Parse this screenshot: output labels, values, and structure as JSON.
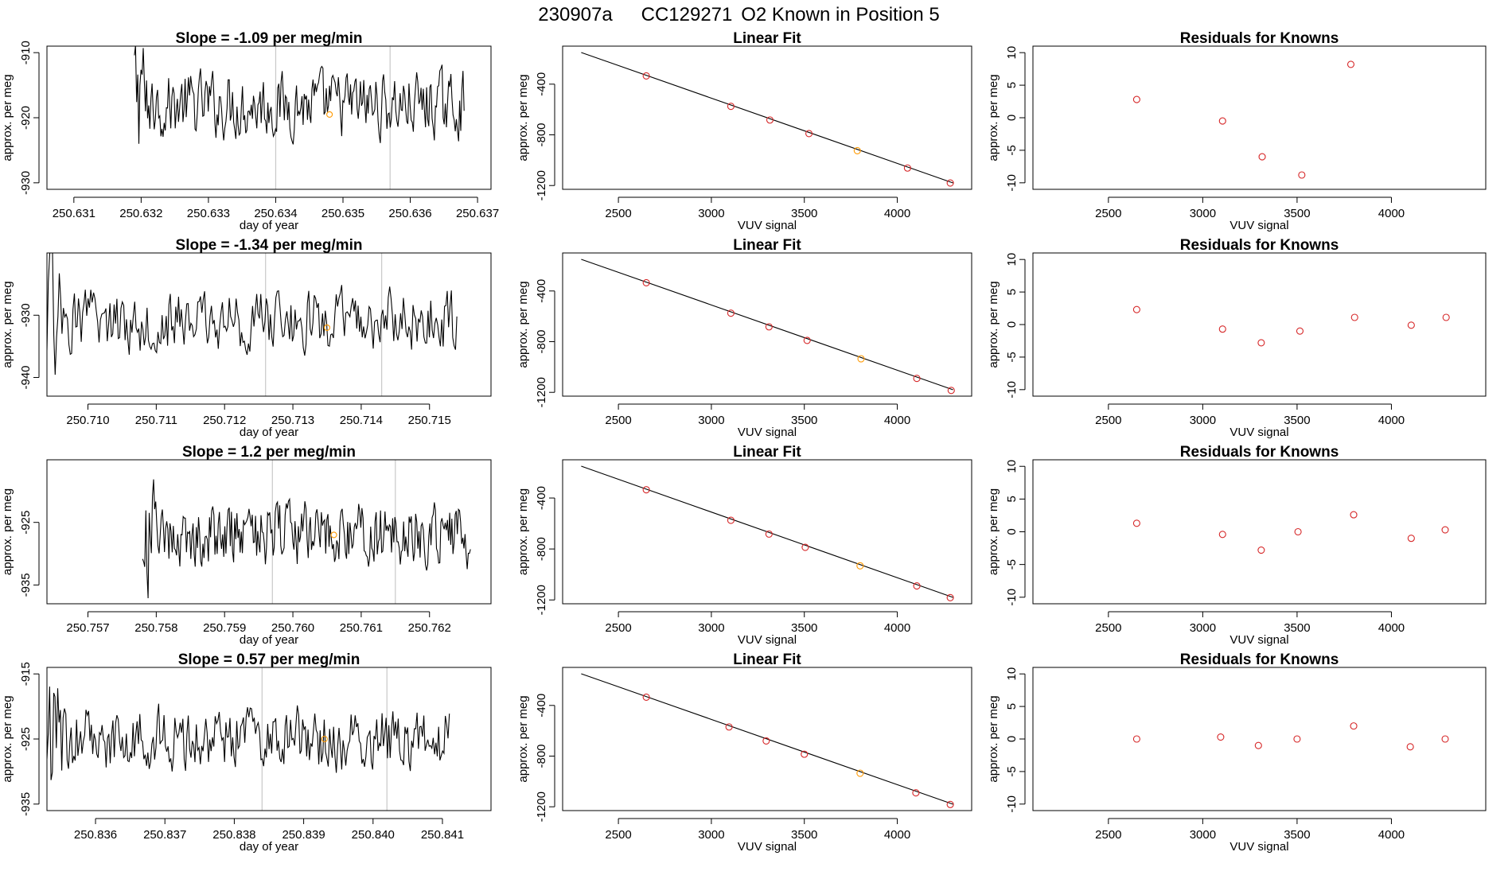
{
  "figure_title": {
    "run_id": "230907a",
    "tank_id": "CC129271",
    "description": "O2 Known in Position  5"
  },
  "colors": {
    "trace": "#000000",
    "marker_known": "#d62728",
    "marker_highlight": "#ff9900",
    "vline": "#c8c8c8",
    "fit_line": "#000000",
    "frame": "#000000"
  },
  "chart_data": [
    {
      "type": "line",
      "row": 0,
      "panel": "time_series",
      "title": "Slope =  -1.09  per meg/min",
      "xlabel": "day of year",
      "ylabel": "approx. per meg",
      "xlim": [
        250.6306,
        250.6372
      ],
      "ylim": [
        -931.0,
        -909.0
      ],
      "xticks": [
        250.631,
        250.632,
        250.633,
        250.634,
        250.635,
        250.636,
        250.637
      ],
      "xtick_labels": [
        "250.631",
        "250.632",
        "250.633",
        "250.634",
        "250.635",
        "250.636",
        "250.637"
      ],
      "yticks": [
        -930,
        -920,
        -910
      ],
      "ytick_labels": [
        "-930",
        "-920",
        "-910"
      ],
      "series_start": 250.6319,
      "series_end": 250.6368,
      "series_center": -918.0,
      "series_spread": 4.5,
      "vlines": [
        250.634,
        250.6357
      ],
      "highlight_point": {
        "x": 250.6348,
        "y": -919.5
      }
    },
    {
      "type": "scatter",
      "row": 0,
      "panel": "linear_fit",
      "title": "Linear Fit",
      "xlabel": "VUV signal",
      "ylabel": "approx. per meg",
      "xlim": [
        2200,
        4400
      ],
      "ylim": [
        -1230,
        -100
      ],
      "xticks": [
        2500,
        3000,
        3500,
        4000
      ],
      "xtick_labels": [
        "2500",
        "3000",
        "3500",
        "4000"
      ],
      "yticks": [
        -1200,
        -800,
        -400
      ],
      "ytick_labels": [
        "-1200",
        "-800",
        "-400"
      ],
      "fit_line": {
        "x": [
          2300,
          4300
        ],
        "y": [
          -150,
          -1180
        ]
      },
      "points": [
        {
          "x": 2650,
          "y": -335
        },
        {
          "x": 3105,
          "y": -575
        },
        {
          "x": 3315,
          "y": -683
        },
        {
          "x": 3525,
          "y": -790
        },
        {
          "x": 3785,
          "y": -925,
          "highlight": true
        },
        {
          "x": 4055,
          "y": -1062
        },
        {
          "x": 4285,
          "y": -1180
        }
      ]
    },
    {
      "type": "scatter",
      "row": 0,
      "panel": "residuals",
      "title": "Residuals for Knowns",
      "xlabel": "VUV signal",
      "ylabel": "approx. per meg",
      "xlim": [
        2100,
        4500
      ],
      "ylim": [
        -11,
        11
      ],
      "xticks": [
        2500,
        3000,
        3500,
        4000
      ],
      "xtick_labels": [
        "2500",
        "3000",
        "3500",
        "4000"
      ],
      "yticks": [
        -10,
        -5,
        0,
        5,
        10
      ],
      "ytick_labels": [
        "-10",
        "-5",
        "0",
        "5",
        "10"
      ],
      "points": [
        {
          "x": 2650,
          "y": 2.8
        },
        {
          "x": 3105,
          "y": -0.5
        },
        {
          "x": 3315,
          "y": -6.0
        },
        {
          "x": 3525,
          "y": -8.8
        },
        {
          "x": 3785,
          "y": 8.2
        }
      ]
    },
    {
      "type": "line",
      "row": 1,
      "panel": "time_series",
      "title": "Slope =  -1.34  per meg/min",
      "xlabel": "day of year",
      "ylabel": "approx. per meg",
      "xlim": [
        250.7094,
        250.7159
      ],
      "ylim": [
        -943.0,
        -920.0
      ],
      "xticks": [
        250.71,
        250.711,
        250.712,
        250.713,
        250.714,
        250.715
      ],
      "xtick_labels": [
        "250.710",
        "250.711",
        "250.712",
        "250.713",
        "250.714",
        "250.715"
      ],
      "yticks": [
        -940,
        -930
      ],
      "ytick_labels": [
        "-940",
        "-930"
      ],
      "series_start": 250.7094,
      "series_end": 250.7154,
      "series_center": -931.0,
      "series_spread": 4.5,
      "vlines": [
        250.7126,
        250.7143
      ],
      "highlight_point": {
        "x": 250.7135,
        "y": -932.0
      }
    },
    {
      "type": "scatter",
      "row": 1,
      "panel": "linear_fit",
      "title": "Linear Fit",
      "xlabel": "VUV signal",
      "ylabel": "approx. per meg",
      "xlim": [
        2200,
        4400
      ],
      "ylim": [
        -1230,
        -100
      ],
      "xticks": [
        2500,
        3000,
        3500,
        4000
      ],
      "xtick_labels": [
        "2500",
        "3000",
        "3500",
        "4000"
      ],
      "yticks": [
        -1200,
        -800,
        -400
      ],
      "ytick_labels": [
        "-1200",
        "-800",
        "-400"
      ],
      "fit_line": {
        "x": [
          2300,
          4300
        ],
        "y": [
          -150,
          -1180
        ]
      },
      "points": [
        {
          "x": 2650,
          "y": -335
        },
        {
          "x": 3105,
          "y": -575
        },
        {
          "x": 3310,
          "y": -683
        },
        {
          "x": 3515,
          "y": -790
        },
        {
          "x": 3805,
          "y": -935,
          "highlight": true
        },
        {
          "x": 4105,
          "y": -1090
        },
        {
          "x": 4290,
          "y": -1185
        }
      ]
    },
    {
      "type": "scatter",
      "row": 1,
      "panel": "residuals",
      "title": "Residuals for Knowns",
      "xlabel": "VUV signal",
      "ylabel": "approx. per meg",
      "xlim": [
        2100,
        4500
      ],
      "ylim": [
        -11,
        11
      ],
      "xticks": [
        2500,
        3000,
        3500,
        4000
      ],
      "xtick_labels": [
        "2500",
        "3000",
        "3500",
        "4000"
      ],
      "yticks": [
        -10,
        -5,
        0,
        5,
        10
      ],
      "ytick_labels": [
        "-10",
        "-5",
        "0",
        "5",
        "10"
      ],
      "points": [
        {
          "x": 2650,
          "y": 2.3
        },
        {
          "x": 3105,
          "y": -0.7
        },
        {
          "x": 3310,
          "y": -2.8
        },
        {
          "x": 3515,
          "y": -1.0
        },
        {
          "x": 3805,
          "y": 1.1
        },
        {
          "x": 4105,
          "y": -0.1
        },
        {
          "x": 4290,
          "y": 1.1
        }
      ]
    },
    {
      "type": "line",
      "row": 2,
      "panel": "time_series",
      "title": "Slope =  1.2  per meg/min",
      "xlabel": "day of year",
      "ylabel": "approx. per meg",
      "xlim": [
        250.7564,
        250.7629
      ],
      "ylim": [
        -938.0,
        -915.0
      ],
      "xticks": [
        250.757,
        250.758,
        250.759,
        250.76,
        250.761,
        250.762
      ],
      "xtick_labels": [
        "250.757",
        "250.758",
        "250.759",
        "250.760",
        "250.761",
        "250.762"
      ],
      "yticks": [
        -935,
        -925
      ],
      "ytick_labels": [
        "-935",
        "-925"
      ],
      "series_start": 250.7578,
      "series_end": 250.7626,
      "series_center": -927.0,
      "series_spread": 4.5,
      "vlines": [
        250.7597,
        250.7615
      ],
      "highlight_point": {
        "x": 250.7606,
        "y": -927.0
      }
    },
    {
      "type": "scatter",
      "row": 2,
      "panel": "linear_fit",
      "title": "Linear Fit",
      "xlabel": "VUV signal",
      "ylabel": "approx. per meg",
      "xlim": [
        2200,
        4400
      ],
      "ylim": [
        -1230,
        -100
      ],
      "xticks": [
        2500,
        3000,
        3500,
        4000
      ],
      "xtick_labels": [
        "2500",
        "3000",
        "3500",
        "4000"
      ],
      "yticks": [
        -1200,
        -800,
        -400
      ],
      "ytick_labels": [
        "-1200",
        "-800",
        "-400"
      ],
      "fit_line": {
        "x": [
          2300,
          4300
        ],
        "y": [
          -150,
          -1180
        ]
      },
      "points": [
        {
          "x": 2650,
          "y": -335
        },
        {
          "x": 3105,
          "y": -575
        },
        {
          "x": 3310,
          "y": -683
        },
        {
          "x": 3505,
          "y": -787
        },
        {
          "x": 3800,
          "y": -932,
          "highlight": true
        },
        {
          "x": 4105,
          "y": -1090
        },
        {
          "x": 4285,
          "y": -1182
        }
      ]
    },
    {
      "type": "scatter",
      "row": 2,
      "panel": "residuals",
      "title": "Residuals for Knowns",
      "xlabel": "VUV signal",
      "ylabel": "approx. per meg",
      "xlim": [
        2100,
        4500
      ],
      "ylim": [
        -11,
        11
      ],
      "xticks": [
        2500,
        3000,
        3500,
        4000
      ],
      "xtick_labels": [
        "2500",
        "3000",
        "3500",
        "4000"
      ],
      "yticks": [
        -10,
        -5,
        0,
        5,
        10
      ],
      "ytick_labels": [
        "-10",
        "-5",
        "0",
        "5",
        "10"
      ],
      "points": [
        {
          "x": 2650,
          "y": 1.3
        },
        {
          "x": 3105,
          "y": -0.4
        },
        {
          "x": 3310,
          "y": -2.8
        },
        {
          "x": 3505,
          "y": 0.0
        },
        {
          "x": 3800,
          "y": 2.6
        },
        {
          "x": 4105,
          "y": -1.0
        },
        {
          "x": 4285,
          "y": 0.3
        }
      ]
    },
    {
      "type": "line",
      "row": 3,
      "panel": "time_series",
      "title": "Slope =  0.57  per meg/min",
      "xlabel": "day of year",
      "ylabel": "approx. per meg",
      "xlim": [
        250.8353,
        250.8417
      ],
      "ylim": [
        -936.0,
        -914.0
      ],
      "xticks": [
        250.836,
        250.837,
        250.838,
        250.839,
        250.84,
        250.841
      ],
      "xtick_labels": [
        "250.836",
        "250.837",
        "250.838",
        "250.839",
        "250.840",
        "250.841"
      ],
      "yticks": [
        -935,
        -925,
        -915
      ],
      "ytick_labels": [
        "-935",
        "-925",
        "-915"
      ],
      "series_start": 250.8353,
      "series_end": 250.8411,
      "series_center": -925.0,
      "series_spread": 4.5,
      "vlines": [
        250.8384,
        250.8402
      ],
      "highlight_point": {
        "x": 250.8393,
        "y": -925.0
      }
    },
    {
      "type": "scatter",
      "row": 3,
      "panel": "linear_fit",
      "title": "Linear Fit",
      "xlabel": "VUV signal",
      "ylabel": "approx. per meg",
      "xlim": [
        2200,
        4400
      ],
      "ylim": [
        -1230,
        -100
      ],
      "xticks": [
        2500,
        3000,
        3500,
        4000
      ],
      "xtick_labels": [
        "2500",
        "3000",
        "3500",
        "4000"
      ],
      "yticks": [
        -1200,
        -800,
        -400
      ],
      "ytick_labels": [
        "-1200",
        "-800",
        "-400"
      ],
      "fit_line": {
        "x": [
          2300,
          4300
        ],
        "y": [
          -150,
          -1180
        ]
      },
      "points": [
        {
          "x": 2650,
          "y": -335
        },
        {
          "x": 3095,
          "y": -570
        },
        {
          "x": 3295,
          "y": -680
        },
        {
          "x": 3500,
          "y": -785
        },
        {
          "x": 3800,
          "y": -935,
          "highlight": true
        },
        {
          "x": 4100,
          "y": -1090
        },
        {
          "x": 4285,
          "y": -1182
        }
      ]
    },
    {
      "type": "scatter",
      "row": 3,
      "panel": "residuals",
      "title": "Residuals for Knowns",
      "xlabel": "VUV signal",
      "ylabel": "approx. per meg",
      "xlim": [
        2100,
        4500
      ],
      "ylim": [
        -11,
        11
      ],
      "xticks": [
        2500,
        3000,
        3500,
        4000
      ],
      "xtick_labels": [
        "2500",
        "3000",
        "3500",
        "4000"
      ],
      "yticks": [
        -10,
        -5,
        0,
        5,
        10
      ],
      "ytick_labels": [
        "-10",
        "-5",
        "0",
        "5",
        "10"
      ],
      "points": [
        {
          "x": 2650,
          "y": 0.0
        },
        {
          "x": 3095,
          "y": 0.3
        },
        {
          "x": 3295,
          "y": -1.0
        },
        {
          "x": 3500,
          "y": 0.0
        },
        {
          "x": 3800,
          "y": 2.0
        },
        {
          "x": 4100,
          "y": -1.2
        },
        {
          "x": 4285,
          "y": 0.0
        }
      ]
    }
  ]
}
